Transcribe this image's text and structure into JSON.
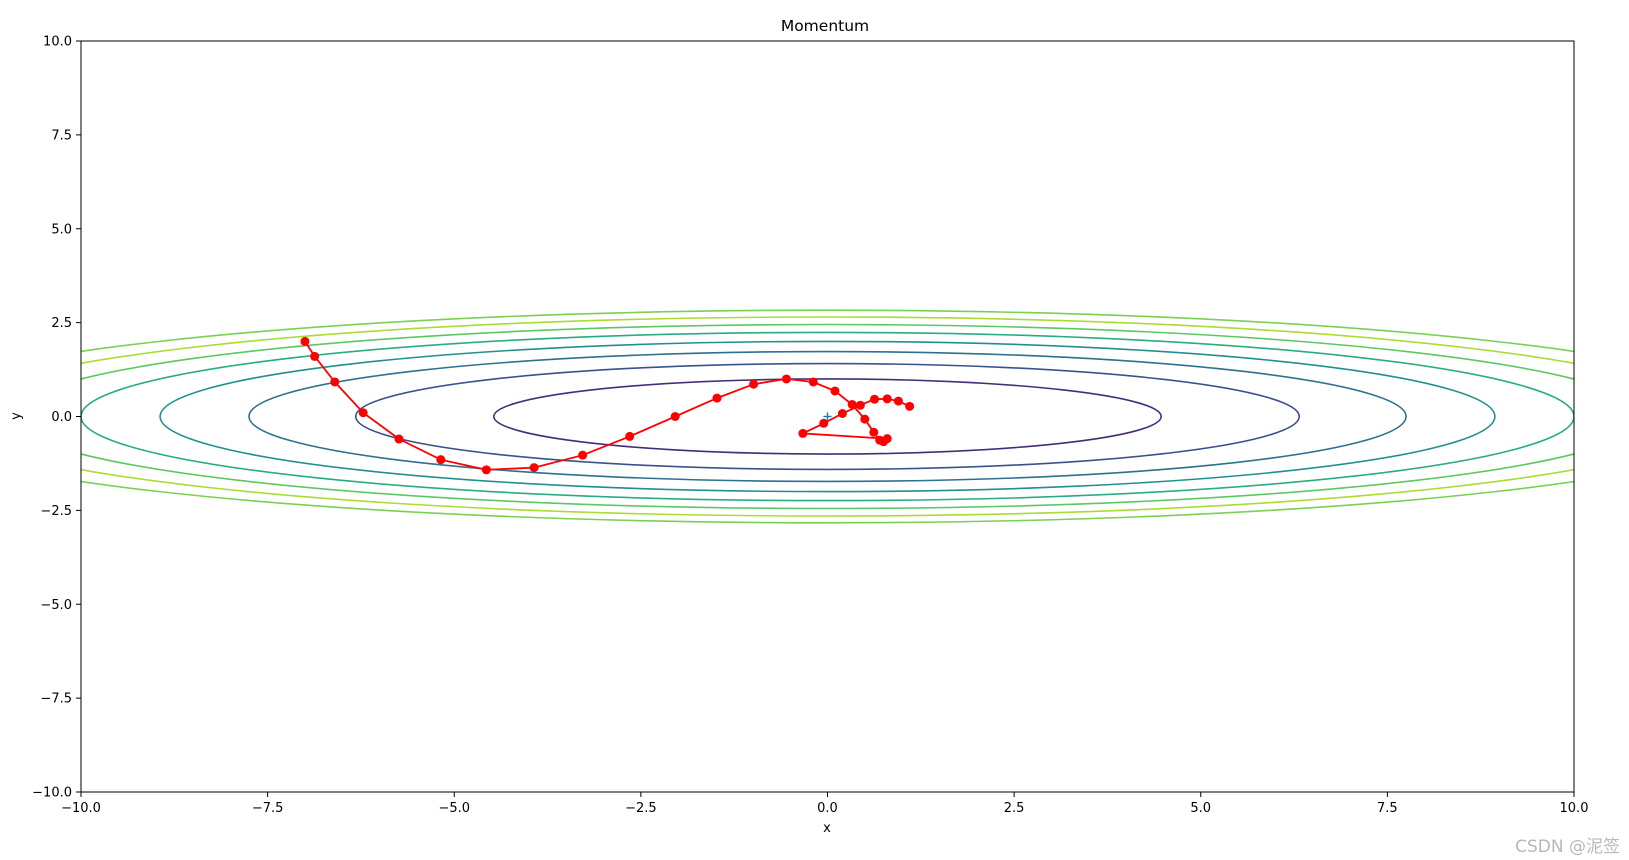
{
  "chart_data": {
    "type": "line",
    "title": "Momentum",
    "xlabel": "x",
    "ylabel": "y",
    "xlim": [
      -10,
      10
    ],
    "ylim": [
      -10,
      10
    ],
    "x_ticks": [
      -10.0,
      -7.5,
      -5.0,
      -2.5,
      0.0,
      2.5,
      5.0,
      7.5,
      10.0
    ],
    "y_ticks": [
      -10.0,
      -7.5,
      -5.0,
      -2.5,
      0.0,
      2.5,
      5.0,
      7.5,
      10.0
    ],
    "x_tick_labels": [
      "−10.0",
      "−7.5",
      "−5.0",
      "−2.5",
      "0.0",
      "2.5",
      "5.0",
      "7.5",
      "10.0"
    ],
    "y_tick_labels": [
      "−10.0",
      "−7.5",
      "−5.0",
      "−2.5",
      "0.0",
      "2.5",
      "5.0",
      "7.5",
      "10.0"
    ],
    "grid": false,
    "contour": {
      "function": "x^2/20 + y^2",
      "colormap": "viridis",
      "levels": [
        {
          "semi_x": 4.47,
          "semi_y": 1.0,
          "color": "#472c7a"
        },
        {
          "semi_x": 6.32,
          "semi_y": 1.41,
          "color": "#3b518b"
        },
        {
          "semi_x": 7.75,
          "semi_y": 1.73,
          "color": "#2c718e"
        },
        {
          "semi_x": 8.94,
          "semi_y": 2.0,
          "color": "#21908d"
        },
        {
          "semi_x": 10.0,
          "semi_y": 2.24,
          "color": "#27ad81"
        },
        {
          "semi_x": 10.95,
          "semi_y": 2.45,
          "color": "#5cc863"
        },
        {
          "semi_x": 11.83,
          "semi_y": 2.65,
          "color": "#aadc32"
        },
        {
          "semi_x": 12.65,
          "semi_y": 2.83,
          "color": "#7ad151"
        }
      ]
    },
    "series": [
      {
        "color": "#ff0000",
        "marker": "circle",
        "x": [
          -7.0,
          -6.87,
          -6.6,
          -6.22,
          -5.74,
          -5.18,
          -4.57,
          -3.93,
          -3.28,
          -2.65,
          -2.04,
          -1.48,
          -0.99,
          -0.55,
          -0.19,
          0.1,
          0.33,
          0.5,
          0.62,
          0.7,
          0.75,
          0.8
        ],
        "y": [
          2.0,
          1.6,
          0.92,
          0.1,
          -0.6,
          -1.15,
          -1.42,
          -1.36,
          -1.03,
          -0.53,
          0.0,
          0.49,
          0.86,
          1.0,
          0.92,
          0.68,
          0.32,
          -0.07,
          -0.42,
          -0.63,
          -0.67,
          -0.59
        ]
      }
    ],
    "path_extra": {
      "x": [
        -0.33,
        -0.05,
        0.2,
        0.44,
        0.63,
        0.8,
        0.95,
        1.1
      ],
      "y": [
        -0.45,
        -0.18,
        0.08,
        0.3,
        0.46,
        0.47,
        0.41,
        0.27
      ]
    },
    "minimum_marker": {
      "x": 0.0,
      "y": 0.0,
      "symbol": "+",
      "color": "#1f77b4"
    }
  },
  "watermark": "CSDN @泥签"
}
